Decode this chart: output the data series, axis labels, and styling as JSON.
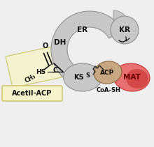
{
  "bg_color": "#f0f0f0",
  "title": "Acetil-ACP",
  "label_ER": "ER",
  "label_KR": "KR",
  "label_DH": "DH",
  "label_KS": "KS",
  "label_ACP": "ACP",
  "label_MAT": "MAT",
  "label_CoASH": "CoA-SH",
  "label_HS": "HS",
  "label_S": "S",
  "label_CH3": "CH₃",
  "label_C": "C",
  "label_O": "O",
  "gray_color": "#c8c8c8",
  "gray_dark": "#909090",
  "gray_med": "#b0b0b0",
  "tan_color": "#c8a882",
  "tan_dark": "#8b6940",
  "red_color": "#cc3333",
  "red_light": "#e87070",
  "yellow_bg": "#f5f2cc",
  "yellow_border": "#c8c060",
  "text_color": "#111111",
  "white": "#ffffff"
}
